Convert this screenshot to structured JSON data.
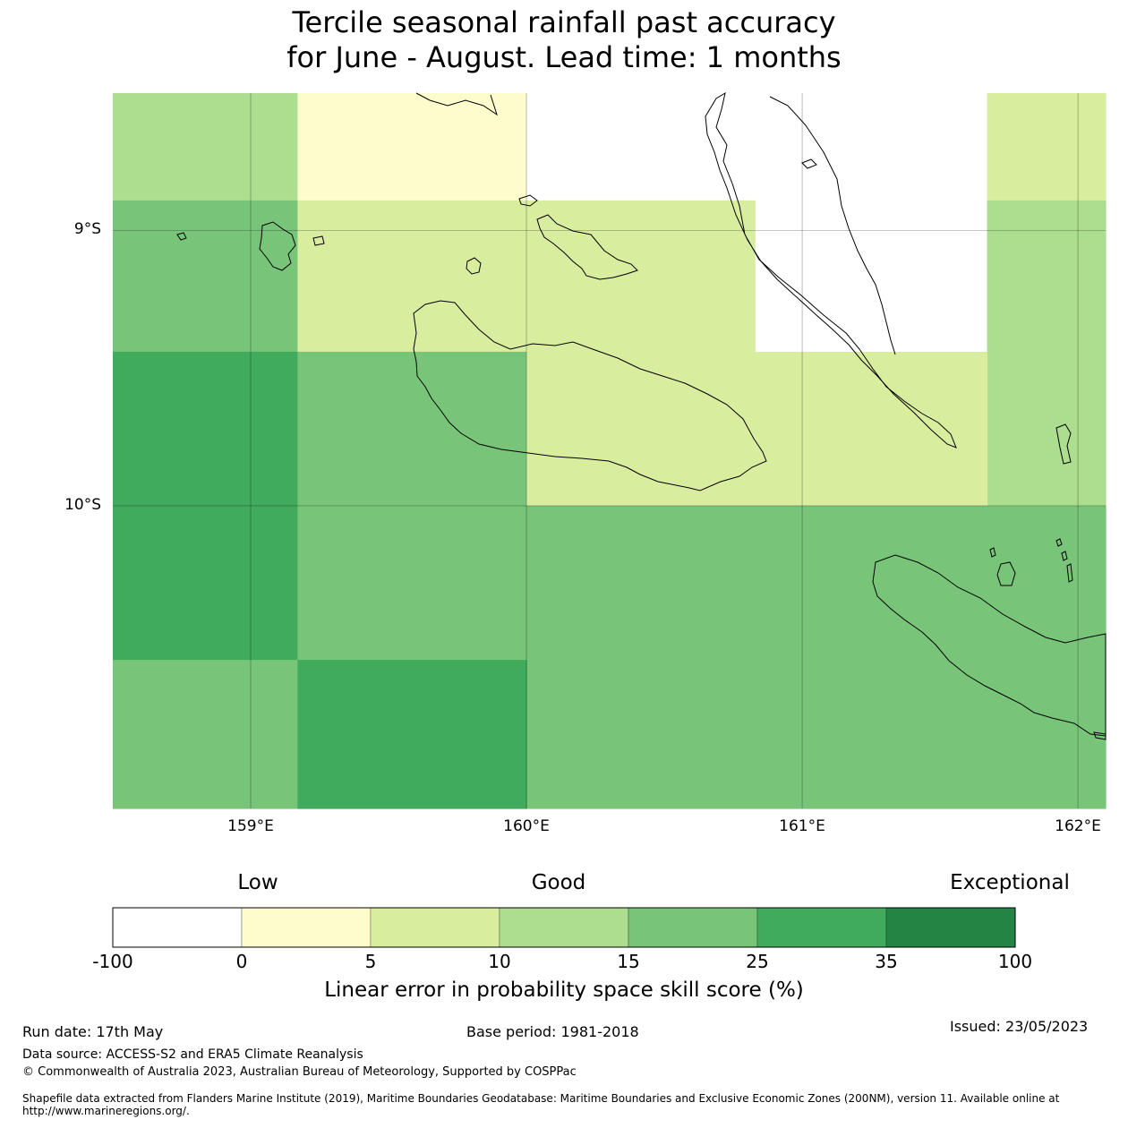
{
  "title": {
    "line1": "Tercile seasonal rainfall past accuracy",
    "line2": "for June - August. Lead time: 1 months"
  },
  "map": {
    "lat_labels": [
      "9°S",
      "10°S"
    ],
    "lon_labels": [
      "159°E",
      "160°E",
      "161°E",
      "162°E"
    ],
    "category_colors": {
      "lt0": "#ffffff",
      "c0_5": "#fefccc",
      "c5_10": "#d9ed9f",
      "c10_15": "#addd8e",
      "c15_25": "#78c579",
      "c25_35": "#41ab5d",
      "c35_100": "#238443"
    },
    "grid_cells": [
      {
        "lon": [
          158.5,
          159.17
        ],
        "lat": [
          -8.5,
          -8.89
        ],
        "cat": "c10_15"
      },
      {
        "lon": [
          159.17,
          160.0
        ],
        "lat": [
          -8.5,
          -8.89
        ],
        "cat": "c0_5"
      },
      {
        "lon": [
          160.0,
          161.67
        ],
        "lat": [
          -8.5,
          -8.89
        ],
        "cat": "lt0"
      },
      {
        "lon": [
          161.67,
          162.1
        ],
        "lat": [
          -8.5,
          -8.89
        ],
        "cat": "c5_10"
      },
      {
        "lon": [
          158.5,
          159.17
        ],
        "lat": [
          -8.89,
          -9.44
        ],
        "cat": "c15_25"
      },
      {
        "lon": [
          159.17,
          160.83
        ],
        "lat": [
          -8.89,
          -9.44
        ],
        "cat": "c5_10"
      },
      {
        "lon": [
          160.83,
          161.67
        ],
        "lat": [
          -8.89,
          -9.44
        ],
        "cat": "lt0"
      },
      {
        "lon": [
          161.67,
          162.1
        ],
        "lat": [
          -8.89,
          -10.0
        ],
        "cat": "c10_15"
      },
      {
        "lon": [
          158.5,
          159.17
        ],
        "lat": [
          -9.44,
          -10.56
        ],
        "cat": "c25_35"
      },
      {
        "lon": [
          159.17,
          160.0
        ],
        "lat": [
          -9.44,
          -10.0
        ],
        "cat": "c15_25"
      },
      {
        "lon": [
          160.0,
          161.67
        ],
        "lat": [
          -9.44,
          -10.0
        ],
        "cat": "c5_10"
      },
      {
        "lon": [
          159.17,
          160.0
        ],
        "lat": [
          -10.0,
          -10.56
        ],
        "cat": "c15_25"
      },
      {
        "lon": [
          160.0,
          162.1
        ],
        "lat": [
          -10.0,
          -11.1
        ],
        "cat": "c15_25"
      },
      {
        "lon": [
          158.5,
          159.17
        ],
        "lat": [
          -10.56,
          -11.1
        ],
        "cat": "c15_25"
      },
      {
        "lon": [
          159.17,
          160.0
        ],
        "lat": [
          -10.56,
          -11.1
        ],
        "cat": "c25_35"
      }
    ]
  },
  "colorbar": {
    "categories": [
      "Low",
      "Good",
      "Exceptional"
    ],
    "ticks": [
      "-100",
      "0",
      "5",
      "10",
      "15",
      "25",
      "35",
      "100"
    ],
    "colors": [
      "#ffffff",
      "#fefccc",
      "#d9ed9f",
      "#addd8e",
      "#78c579",
      "#41ab5d",
      "#238443"
    ],
    "title": "Linear error in probability space skill score (%)"
  },
  "footer": {
    "run_date": "Run date: 17th May",
    "base_period": "Base period: 1981-2018",
    "issued": "Issued: 23/05/2023",
    "data_source": "Data source: ACCESS-S2 and ERA5 Climate Reanalysis",
    "copyright": "© Commonwealth of Australia 2023, Australian Bureau of Meteorology, Supported by COSPPac",
    "shapefile": "Shapefile data extracted from Flanders Marine Institute (2019), Maritime Boundaries Geodatabase: Maritime Boundaries and Exclusive Economic Zones (200NM), version 11. Available online at http://www.marineregions.org/."
  }
}
